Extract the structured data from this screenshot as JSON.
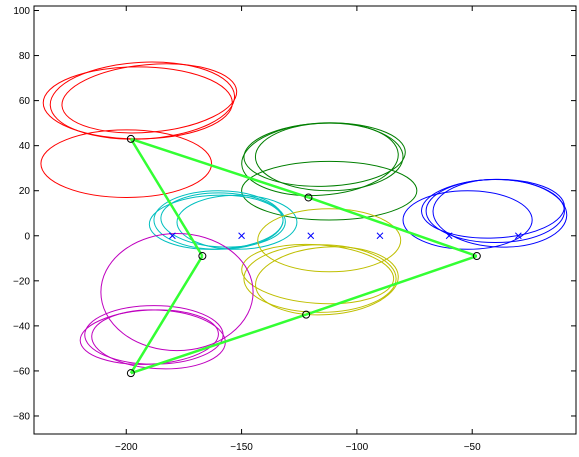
{
  "chart_data": {
    "type": "line",
    "title": "",
    "xlabel": "",
    "ylabel": "",
    "xlim": [
      -240,
      -5
    ],
    "ylim": [
      -88,
      102
    ],
    "xticks": [
      -200,
      -150,
      -100,
      -50
    ],
    "xtick_labels": [
      "−200",
      "−150",
      "−100",
      "−50"
    ],
    "yticks": [
      -80,
      -60,
      -40,
      -20,
      0,
      20,
      40,
      60,
      80,
      100
    ],
    "ytick_labels": [
      "−80",
      "−60",
      "−40",
      "−20",
      "0",
      "20",
      "40",
      "60",
      "80",
      "100"
    ],
    "grid": false,
    "colors": {
      "red": "#ff0000",
      "darkgreen": "#007f00",
      "blue": "#0000ff",
      "cyan": "#00bfbf",
      "yellow": "#bfbf00",
      "magenta": "#bf00bf",
      "network": "#33ff33",
      "markers": "#0000ff"
    },
    "x_markers": [
      {
        "x": -180,
        "y": 0
      },
      {
        "x": -150,
        "y": 0
      },
      {
        "x": -120,
        "y": 0
      },
      {
        "x": -90,
        "y": 0
      },
      {
        "x": -60,
        "y": 0
      },
      {
        "x": -30,
        "y": 0
      }
    ],
    "nodes": [
      {
        "x": -198,
        "y": 43
      },
      {
        "x": -121,
        "y": 17
      },
      {
        "x": -48,
        "y": -9
      },
      {
        "x": -167,
        "y": -9
      },
      {
        "x": -122,
        "y": -35
      },
      {
        "x": -198,
        "y": -61
      }
    ],
    "edges": [
      [
        0,
        1
      ],
      [
        1,
        2
      ],
      [
        0,
        3
      ],
      [
        3,
        5
      ],
      [
        5,
        4
      ],
      [
        4,
        2
      ]
    ],
    "orbits": [
      {
        "color": "red",
        "loops": [
          {
            "cx": -193,
            "cy": 60,
            "rx": 40,
            "ry": 17,
            "rot": -3
          },
          {
            "cx": -190,
            "cy": 61,
            "rx": 38,
            "ry": 15,
            "rot": -5
          },
          {
            "cx": -195,
            "cy": 59,
            "rx": 41,
            "ry": 16,
            "rot": 0
          }
        ],
        "tail": {
          "cx": -200,
          "cy": 32,
          "rx": 37,
          "ry": 15
        }
      },
      {
        "color": "darkgreen",
        "loops": [
          {
            "cx": -116,
            "cy": 34,
            "rx": 34,
            "ry": 16,
            "rot": -4
          },
          {
            "cx": -112,
            "cy": 35,
            "rx": 32,
            "ry": 15,
            "rot": 0
          },
          {
            "cx": -114,
            "cy": 36,
            "rx": 35,
            "ry": 14,
            "rot": -2
          }
        ],
        "tail": {
          "cx": -112,
          "cy": 20,
          "rx": 38,
          "ry": 13
        }
      },
      {
        "color": "blue",
        "loops": [
          {
            "cx": -40,
            "cy": 11,
            "rx": 30,
            "ry": 14,
            "rot": 0
          },
          {
            "cx": -38,
            "cy": 10,
            "rx": 29,
            "ry": 15,
            "rot": 2
          },
          {
            "cx": -41,
            "cy": 12,
            "rx": 31,
            "ry": 13,
            "rot": -2
          }
        ],
        "tail": {
          "cx": -52,
          "cy": 7,
          "rx": 28,
          "ry": 13
        }
      },
      {
        "color": "cyan",
        "loops": [
          {
            "cx": -160,
            "cy": 7,
            "rx": 28,
            "ry": 13,
            "rot": 0
          },
          {
            "cx": -158,
            "cy": 7,
            "rx": 27,
            "ry": 12,
            "rot": 2
          },
          {
            "cx": -161,
            "cy": 6,
            "rx": 29,
            "ry": 12,
            "rot": -2
          }
        ],
        "tail": {
          "cx": -152,
          "cy": 6,
          "rx": 26,
          "ry": 12
        }
      },
      {
        "color": "yellow",
        "loops": [
          {
            "cx": -116,
            "cy": -19,
            "rx": 33,
            "ry": 15,
            "rot": 0
          },
          {
            "cx": -113,
            "cy": -20,
            "rx": 31,
            "ry": 15,
            "rot": -4
          },
          {
            "cx": -117,
            "cy": -17,
            "rx": 33,
            "ry": 13,
            "rot": 4
          }
        ],
        "tail": {
          "cx": -112,
          "cy": -2,
          "rx": 31,
          "ry": 14
        }
      },
      {
        "color": "magenta",
        "loops": [
          {
            "cx": -188,
            "cy": -44,
            "rx": 30,
            "ry": 13,
            "rot": 0
          },
          {
            "cx": -186,
            "cy": -46,
            "rx": 29,
            "ry": 13,
            "rot": 3
          },
          {
            "cx": -190,
            "cy": -45,
            "rx": 30,
            "ry": 12,
            "rot": -3
          }
        ],
        "tail": {
          "cx": -178,
          "cy": -25,
          "rx": 33,
          "ry": 26
        }
      }
    ]
  }
}
